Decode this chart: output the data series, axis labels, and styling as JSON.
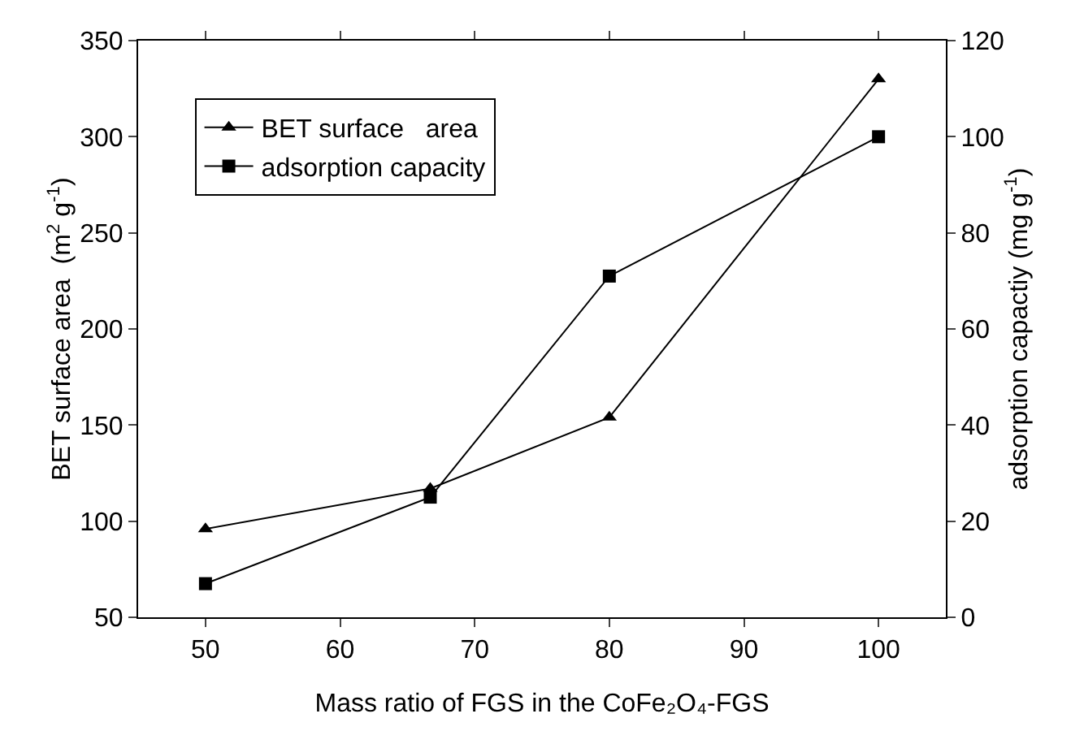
{
  "chart_data": {
    "type": "line",
    "xlabel": "Mass ratio of FGS in the CoFe₂O₄-FGS",
    "ylabel": "BET surface area  (m$^{2}$ g$^{-1}$)",
    "y2label": "adsorption capactiy (mg g$^{-1}$)",
    "x": [
      50,
      66.7,
      80,
      100
    ],
    "series": [
      {
        "name": "BET surface   area",
        "color": "#000000",
        "marker": "triangle",
        "values": [
          96,
          117,
          154,
          330
        ]
      },
      {
        "name": "adsorption capacity",
        "color": "#000000",
        "marker": "square",
        "axis": "y2",
        "values": [
          7,
          25,
          71,
          100
        ]
      }
    ],
    "xlim": [
      45,
      105
    ],
    "xticks": [
      50,
      60,
      70,
      80,
      90,
      100
    ],
    "ylim": [
      50,
      350
    ],
    "yticks": [
      50,
      100,
      150,
      200,
      250,
      300,
      350
    ],
    "y2lim": [
      0,
      120
    ],
    "y2ticks": [
      0,
      20,
      40,
      60,
      80,
      100,
      120
    ],
    "grid": false,
    "legend": "top left",
    "line_style": "solid"
  }
}
